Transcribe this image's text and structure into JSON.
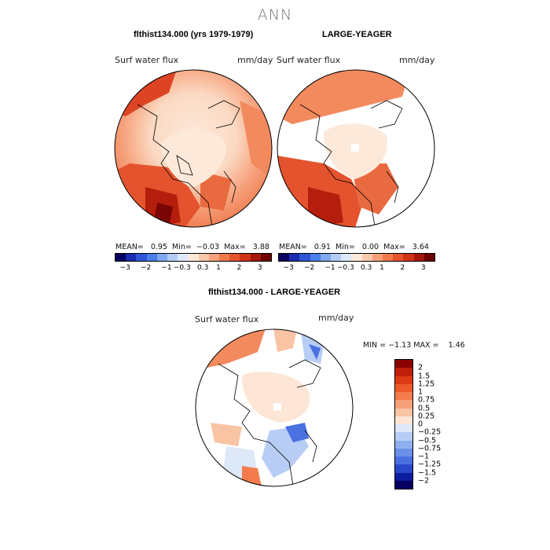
{
  "title": "ANN",
  "panel1": {
    "title": "flthist134.000 (yrs 1979-1979)",
    "field": "Surf water flux",
    "units": "mm/day",
    "stats": {
      "mean_label": "MEAN=",
      "mean": "0.95",
      "min_label": "Min=",
      "min": "−0.03",
      "max_label": "Max=",
      "max": "3.88"
    }
  },
  "panel2": {
    "title": "LARGE-YEAGER",
    "field": "Surf water flux",
    "units": "mm/day",
    "stats": {
      "mean_label": "MEAN=",
      "mean": "0.91",
      "min_label": "Min=",
      "min": "0.00",
      "max_label": "Max=",
      "max": "3.64"
    }
  },
  "panel3": {
    "title": "flthist134.000 - LARGE-YEAGER",
    "field": "Surf water flux",
    "units": "mm/day",
    "stats": {
      "min_label": "MIN =",
      "min": "−1.13",
      "max_label": "MAX =",
      "max": "1.46"
    }
  },
  "colorbar_top": {
    "ticks": [
      "−3",
      "−2",
      "−1",
      "−0.3",
      "0.3",
      "1",
      "2",
      "3"
    ],
    "colors": [
      "#08005e",
      "#1c2cb0",
      "#2f56d6",
      "#4a7fe8",
      "#7fa8f0",
      "#b4ccf4",
      "#dde8f8",
      "#fde9da",
      "#f9c9ac",
      "#f5a07a",
      "#f07a4e",
      "#e4532d",
      "#cf3216",
      "#a4170a",
      "#6d0000"
    ]
  },
  "colorbar_diff": {
    "ticks": [
      "2",
      "1.5",
      "1.25",
      "1",
      "0.75",
      "0.5",
      "0.25",
      "0",
      "−0.25",
      "−0.5",
      "−0.75",
      "−1",
      "−1.25",
      "−1.5",
      "−2"
    ],
    "colors": [
      "#8a0000",
      "#c01f0a",
      "#dd3a14",
      "#ee5a2a",
      "#f47c4c",
      "#f6a07a",
      "#f9c4a4",
      "#fde6d6",
      "#dde8f8",
      "#b8cdf5",
      "#8fb0f0",
      "#6a90ea",
      "#4a70e2",
      "#2a48cc",
      "#0c1c9e",
      "#050060"
    ]
  }
}
